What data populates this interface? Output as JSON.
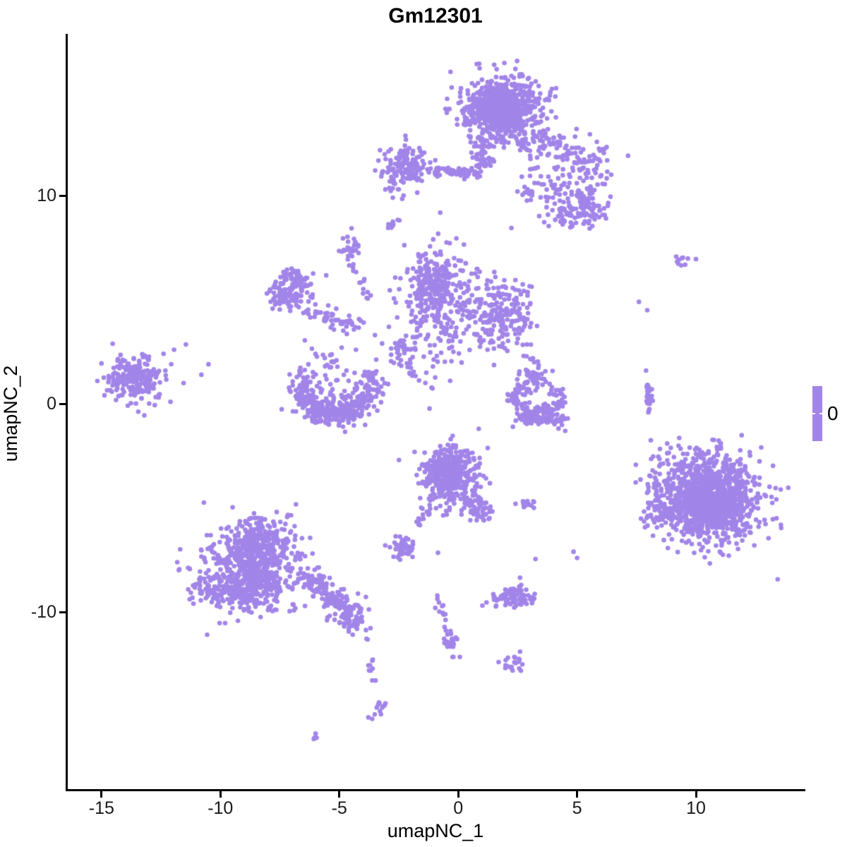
{
  "title": "Gm12301",
  "legend": {
    "label": "0"
  },
  "colors": {
    "point": "#a285e8",
    "axis": "#000000",
    "tick_text": "#1a1a1a"
  },
  "chart_data": {
    "type": "scatter",
    "title": "Gm12301",
    "xlabel": "umapNC_1",
    "ylabel": "umapNC_2",
    "x_ticks": [
      -15,
      -10,
      -5,
      0,
      5,
      10
    ],
    "y_ticks": [
      -10,
      0,
      10
    ],
    "x_range": [
      -16.42,
      14.57
    ],
    "y_range": [
      -18.5,
      17.7
    ],
    "grid": false,
    "point_color": "#a285e8",
    "point_radius_px": 3.3,
    "legend": {
      "position": "right",
      "type": "colorbar",
      "values": [
        "0"
      ],
      "color": "#a285e8"
    },
    "clusters": [
      {
        "name": "top-main",
        "type": "gauss",
        "cx": 1.9,
        "cy": 14.1,
        "sx": 0.85,
        "sy": 0.78,
        "n": 620
      },
      {
        "name": "top-main-core",
        "type": "gauss",
        "cx": 1.7,
        "cy": 14.4,
        "sx": 0.5,
        "sy": 0.5,
        "n": 200
      },
      {
        "name": "top-funnel",
        "type": "band",
        "x1": 1.3,
        "y1": 12.7,
        "x2": 0.75,
        "y2": 11.1,
        "jitter": 0.3,
        "n": 60
      },
      {
        "name": "top-left-trail",
        "type": "band",
        "x1": -1.0,
        "y1": 11.2,
        "x2": 0.7,
        "y2": 11.1,
        "jitter": 0.14,
        "n": 50
      },
      {
        "name": "topleft-cluster",
        "type": "gauss",
        "cx": -2.2,
        "cy": 11.4,
        "sx": 0.55,
        "sy": 0.5,
        "n": 150
      },
      {
        "name": "topleft-dots",
        "type": "dots",
        "pts": [
          [
            -2.5,
            10.3
          ],
          [
            -2.3,
            10.0
          ],
          [
            -2.75,
            9.9
          ]
        ]
      },
      {
        "name": "topright-band",
        "type": "band",
        "x1": 2.9,
        "y1": 12.9,
        "x2": 6.1,
        "y2": 11.4,
        "jitter": 0.45,
        "n": 120
      },
      {
        "name": "topright-blob",
        "type": "gauss",
        "cx": 5.5,
        "cy": 9.6,
        "sx": 0.33,
        "sy": 0.4,
        "n": 65
      },
      {
        "name": "topright-scatter",
        "type": "gauss",
        "cx": 4.2,
        "cy": 10.4,
        "sx": 0.85,
        "sy": 0.8,
        "n": 80
      },
      {
        "name": "topright-bottom-blob",
        "type": "gauss",
        "cx": 4.6,
        "cy": 9.0,
        "sx": 0.38,
        "sy": 0.33,
        "n": 45
      },
      {
        "name": "topright-tripod",
        "type": "gauss",
        "cx": 2.95,
        "cy": 10.1,
        "sx": 0.22,
        "sy": 0.18,
        "n": 12
      },
      {
        "name": "tiny-diagonal",
        "type": "band",
        "x1": -2.95,
        "y1": 8.5,
        "x2": -2.6,
        "y2": 8.85,
        "jitter": 0.07,
        "n": 12
      },
      {
        "name": "small-upper-blob",
        "type": "gauss",
        "cx": -4.55,
        "cy": 7.5,
        "sx": 0.22,
        "sy": 0.3,
        "n": 25
      },
      {
        "name": "upper-chain",
        "type": "band",
        "x1": -4.5,
        "y1": 6.8,
        "x2": -3.55,
        "y2": 4.7,
        "jitter": 0.12,
        "n": 14
      },
      {
        "name": "ring-cluster",
        "type": "ring",
        "cx": -7.05,
        "cy": 5.45,
        "r": 0.62,
        "jitter": 0.26,
        "n": 150
      },
      {
        "name": "ring-trail",
        "type": "band",
        "x1": -6.3,
        "y1": 4.4,
        "x2": -4.35,
        "y2": 3.8,
        "jitter": 0.22,
        "n": 55
      },
      {
        "name": "center-main",
        "type": "gauss",
        "cx": -0.9,
        "cy": 4.9,
        "sx": 0.75,
        "sy": 1.4,
        "n": 240
      },
      {
        "name": "center-main-core",
        "type": "gauss",
        "cx": -1.2,
        "cy": 5.7,
        "sx": 0.45,
        "sy": 0.65,
        "n": 130
      },
      {
        "name": "center-right",
        "type": "gauss",
        "cx": 1.95,
        "cy": 4.25,
        "sx": 0.7,
        "sy": 0.9,
        "n": 170
      },
      {
        "name": "center-between",
        "type": "gauss",
        "cx": 0.9,
        "cy": 4.5,
        "sx": 0.55,
        "sy": 0.8,
        "n": 45
      },
      {
        "name": "center-upper-sparse",
        "type": "gauss",
        "cx": 0.3,
        "cy": 6.6,
        "sx": 0.6,
        "sy": 0.7,
        "n": 12
      },
      {
        "name": "left-cluster",
        "type": "gauss",
        "cx": -13.6,
        "cy": 1.2,
        "sx": 0.62,
        "sy": 0.55,
        "n": 230
      },
      {
        "name": "left-outliers",
        "type": "dots",
        "pts": [
          [
            -11.95,
            2.6
          ],
          [
            -11.45,
            2.85
          ],
          [
            -10.8,
            1.4
          ],
          [
            -11.55,
            1.0
          ],
          [
            -12.1,
            0.1
          ],
          [
            -13.2,
            -0.55
          ],
          [
            -14.2,
            1.9
          ],
          [
            -10.5,
            1.9
          ]
        ]
      },
      {
        "name": "center-small-blob",
        "type": "gauss",
        "cx": -2.4,
        "cy": 2.6,
        "sx": 0.3,
        "sy": 0.35,
        "n": 32
      },
      {
        "name": "center-chain",
        "type": "band",
        "x1": -2.3,
        "y1": 1.9,
        "x2": -1.15,
        "y2": 0.6,
        "jitter": 0.1,
        "n": 13
      },
      {
        "name": "center-sparse-dots",
        "type": "dots",
        "pts": [
          [
            -4.9,
            2.7
          ],
          [
            -4.3,
            2.6
          ],
          [
            -5.4,
            1.75
          ],
          [
            -4.7,
            1.6
          ],
          [
            -3.5,
            3.3
          ],
          [
            -3.2,
            2.9
          ],
          [
            -1.6,
            3.3
          ],
          [
            -1.8,
            2.6
          ],
          [
            -0.4,
            3.0
          ],
          [
            -0.2,
            2.5
          ],
          [
            -5.55,
            6.17
          ],
          [
            -4.0,
            5.3
          ],
          [
            -6.45,
            3.05
          ],
          [
            -6.0,
            2.4
          ],
          [
            -6.3,
            1.9
          ]
        ]
      },
      {
        "name": "crescent-arc",
        "type": "arc",
        "cx": -5.1,
        "cy": 0.9,
        "rx": 1.45,
        "ry": 1.5,
        "a1": 150,
        "a2": 385,
        "jitter": 0.3,
        "n": 250
      },
      {
        "name": "crescent-fill",
        "type": "gauss",
        "cx": -5.3,
        "cy": 0.2,
        "sx": 0.8,
        "sy": 0.5,
        "n": 60
      },
      {
        "name": "crescent-top-sparse",
        "type": "gauss",
        "cx": -5.2,
        "cy": 1.6,
        "sx": 0.7,
        "sy": 0.5,
        "n": 25
      },
      {
        "name": "crescent-bottom",
        "type": "band",
        "x1": -6.1,
        "y1": -0.4,
        "x2": -4.3,
        "y2": -0.3,
        "jitter": 0.28,
        "n": 110
      },
      {
        "name": "right-crescent-top",
        "type": "gauss",
        "cx": 3.0,
        "cy": 1.3,
        "sx": 0.3,
        "sy": 0.4,
        "n": 50
      },
      {
        "name": "right-crescent-arc",
        "type": "arc",
        "cx": 3.3,
        "cy": 0.3,
        "rx": 0.85,
        "ry": 0.9,
        "a1": 140,
        "a2": 395,
        "jitter": 0.22,
        "n": 110
      },
      {
        "name": "right-crescent-bottom",
        "type": "band",
        "x1": 2.6,
        "y1": -0.55,
        "x2": 4.4,
        "y2": -0.7,
        "jitter": 0.18,
        "n": 100
      },
      {
        "name": "right-crescent-dots",
        "type": "dots",
        "pts": [
          [
            2.75,
            2.3
          ],
          [
            3.2,
            2.0
          ],
          [
            4.5,
            -1.3
          ],
          [
            2.3,
            -1.1
          ]
        ]
      },
      {
        "name": "right-pair",
        "type": "gauss",
        "cx": 9.4,
        "cy": 6.85,
        "sx": 0.16,
        "sy": 0.12,
        "n": 9
      },
      {
        "name": "right-isolated-dots",
        "type": "dots",
        "pts": [
          [
            10.0,
            6.95
          ],
          [
            7.6,
            4.9
          ],
          [
            7.95,
            4.5
          ]
        ]
      },
      {
        "name": "right-strip",
        "type": "band",
        "x1": 7.98,
        "y1": 1.05,
        "x2": 8.05,
        "y2": -0.5,
        "jitter": 0.07,
        "n": 24
      },
      {
        "name": "right-strip-dots",
        "type": "dots",
        "pts": [
          [
            8.1,
            -1.75
          ],
          [
            7.9,
            1.6
          ]
        ]
      },
      {
        "name": "big-right",
        "type": "gauss",
        "cx": 10.55,
        "cy": -4.6,
        "sx": 1.05,
        "sy": 1.05,
        "n": 900
      },
      {
        "name": "big-right-core",
        "type": "gauss",
        "cx": 10.7,
        "cy": -4.9,
        "sx": 0.7,
        "sy": 0.7,
        "n": 350
      },
      {
        "name": "big-right-left-edge",
        "type": "gauss",
        "cx": 8.6,
        "cy": -4.4,
        "sx": 0.45,
        "sy": 0.85,
        "n": 70
      },
      {
        "name": "big-right-top-sparse",
        "type": "gauss",
        "cx": 10.3,
        "cy": -2.6,
        "sx": 0.9,
        "sy": 0.5,
        "n": 50
      },
      {
        "name": "center-bottom",
        "type": "gauss",
        "cx": -0.35,
        "cy": -3.55,
        "sx": 0.62,
        "sy": 0.75,
        "n": 300
      },
      {
        "name": "center-bottom-core",
        "type": "gauss",
        "cx": -0.55,
        "cy": -3.3,
        "sx": 0.4,
        "sy": 0.45,
        "n": 150
      },
      {
        "name": "center-bottom-tail",
        "type": "band",
        "x1": 0.4,
        "y1": -4.3,
        "x2": 1.2,
        "y2": -5.5,
        "jitter": 0.22,
        "n": 60
      },
      {
        "name": "center-bottom-leftchain",
        "type": "band",
        "x1": -1.8,
        "y1": -6.0,
        "x2": -1.1,
        "y2": -4.9,
        "jitter": 0.08,
        "n": 13
      },
      {
        "name": "pair-blob",
        "type": "band",
        "x1": 2.6,
        "y1": -4.75,
        "x2": 3.1,
        "y2": -4.95,
        "jitter": 0.1,
        "n": 16
      },
      {
        "name": "small-left-blob",
        "type": "gauss",
        "cx": -2.3,
        "cy": -6.9,
        "sx": 0.3,
        "sy": 0.26,
        "n": 45
      },
      {
        "name": "mid-scatter-dots",
        "type": "dots",
        "pts": [
          [
            -0.85,
            -7.15
          ],
          [
            3.25,
            -7.45
          ],
          [
            4.85,
            -7.1
          ],
          [
            5.0,
            -7.4
          ],
          [
            2.6,
            -8.35
          ],
          [
            -0.1,
            -2.0
          ],
          [
            0.9,
            -2.6
          ]
        ]
      },
      {
        "name": "bottomleft-main",
        "type": "gauss",
        "cx": -8.6,
        "cy": -7.9,
        "sx": 1.0,
        "sy": 1.05,
        "n": 520
      },
      {
        "name": "bottomleft-top",
        "type": "gauss",
        "cx": -8.4,
        "cy": -6.5,
        "sx": 0.65,
        "sy": 0.6,
        "n": 170
      },
      {
        "name": "bottomleft-bottom",
        "type": "gauss",
        "cx": -9.2,
        "cy": -8.9,
        "sx": 1.05,
        "sy": 0.55,
        "n": 200
      },
      {
        "name": "bottomleft-trail",
        "type": "band",
        "x1": -6.4,
        "y1": -8.3,
        "x2": -4.8,
        "y2": -9.7,
        "jitter": 0.28,
        "n": 110
      },
      {
        "name": "trail-end-blob",
        "type": "gauss",
        "cx": -4.55,
        "cy": -10.1,
        "sx": 0.4,
        "sy": 0.5,
        "n": 75
      },
      {
        "name": "tail-strip",
        "type": "band",
        "x1": -3.95,
        "y1": -11.1,
        "x2": -3.5,
        "y2": -13.5,
        "jitter": 0.08,
        "n": 11
      },
      {
        "name": "tail-hook",
        "type": "band",
        "x1": -3.75,
        "y1": -15.1,
        "x2": -3.15,
        "y2": -14.3,
        "jitter": 0.12,
        "n": 13
      },
      {
        "name": "tail-dash",
        "type": "band",
        "x1": -6.15,
        "y1": -16.15,
        "x2": -5.9,
        "y2": -15.85,
        "jitter": 0.04,
        "n": 5
      },
      {
        "name": "chain-a",
        "type": "band",
        "x1": -0.85,
        "y1": -9.1,
        "x2": -0.6,
        "y2": -10.4,
        "jitter": 0.07,
        "n": 11
      },
      {
        "name": "chain-b",
        "type": "band",
        "x1": -0.55,
        "y1": -10.8,
        "x2": -0.1,
        "y2": -12.3,
        "jitter": 0.1,
        "n": 16
      },
      {
        "name": "chain-blob",
        "type": "gauss",
        "cx": -0.35,
        "cy": -11.5,
        "sx": 0.13,
        "sy": 0.25,
        "n": 10
      },
      {
        "name": "bottom-mid-blob",
        "type": "gauss",
        "cx": 2.3,
        "cy": -9.3,
        "sx": 0.55,
        "sy": 0.26,
        "n": 85
      },
      {
        "name": "v-blob",
        "type": "gauss",
        "cx": 2.3,
        "cy": -12.55,
        "sx": 0.28,
        "sy": 0.22,
        "n": 18
      },
      {
        "name": "v-blob-dots",
        "type": "dots",
        "pts": [
          [
            1.7,
            -12.4
          ],
          [
            2.6,
            -11.9
          ]
        ]
      }
    ]
  }
}
